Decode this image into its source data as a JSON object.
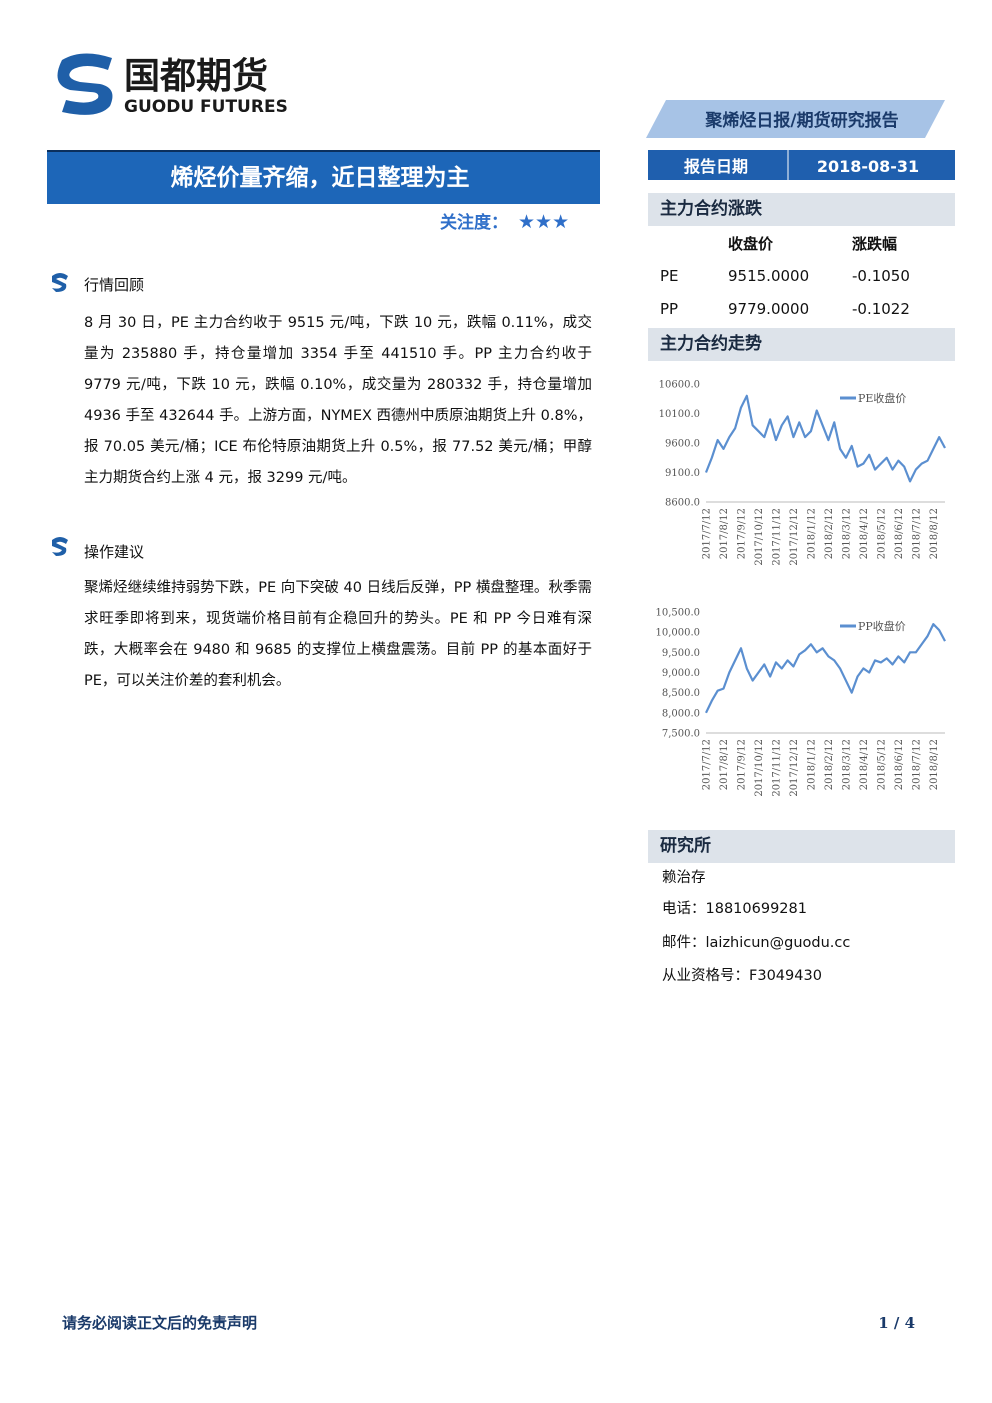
{
  "header": {
    "logo_cn": "国都期货",
    "logo_en": "GUODU FUTURES",
    "report_type": "聚烯烃日报/期货研究报告"
  },
  "title": "烯烃价量齐缩，近日整理为主",
  "attention": {
    "label": "关注度：",
    "stars": "★★★"
  },
  "sections": [
    {
      "heading": "行情回顾",
      "paragraphs": [
        "8 月 30 日，PE 主力合约收于 9515 元/吨，下跌 10 元，跌幅 0.11%，成交量为 235880 手，持仓量增加 3354 手至 441510 手。PP 主力合约收于 9779 元/吨，下跌 10 元，跌幅 0.10%，成交量为 280332 手，持仓量增加 4936 手至 432644 手。上游方面，NYMEX 西德州中质原油期货上升 0.8%，报 70.05 美元/桶；ICE 布伦特原油期货上升 0.5%，报 77.52 美元/桶；甲醇主力期货合约上涨 4 元，报 3299 元/吨。"
      ]
    },
    {
      "heading": "操作建议",
      "paragraphs": [
        "聚烯烃继续维持弱势下跌，PE 向下突破 40 日线后反弹，PP 横盘整理。秋季需求旺季即将到来，现货端价格目前有企稳回升的势头。PE 和 PP 今日难有深跌，大概率会在 9480 和 9685 的支撑位上横盘震荡。目前 PP 的基本面好于 PE，可以关注价差的套利机会。"
      ]
    }
  ],
  "sidebar": {
    "date_label": "报告日期",
    "date": "2018-08-31",
    "table": {
      "title": "主力合约涨跌",
      "headers": [
        "收盘价",
        "涨跌幅"
      ],
      "rows": [
        [
          "PE",
          "9515.0000",
          "-0.1050"
        ],
        [
          "PP",
          "9779.0000",
          "-0.1022"
        ]
      ]
    },
    "trend_title": "主力合约走势"
  },
  "research": {
    "title": "研究所",
    "name": "赖治存",
    "phone": "电话：18810699281",
    "email": "邮件：laizhicun@guodu.cc",
    "license": "从业资格号：F3049430"
  },
  "footer": {
    "disclaimer": "请务必阅读正文后的免责声明",
    "page": "1 / 4"
  },
  "chart_data": [
    {
      "type": "line",
      "categories": [
        "2017/7/12",
        null,
        null,
        "2017/8/12",
        null,
        null,
        "2017/9/12",
        null,
        null,
        "2017/10/12",
        null,
        null,
        "2017/11/12",
        null,
        null,
        "2017/12/12",
        null,
        null,
        "2018/1/12",
        null,
        null,
        "2018/2/12",
        null,
        null,
        "2018/3/12",
        null,
        null,
        "2018/4/12",
        null,
        null,
        "2018/5/12",
        null,
        null,
        "2018/6/12",
        null,
        null,
        "2018/7/12",
        null,
        null,
        "2018/8/12",
        null,
        null
      ],
      "series": [
        {
          "name": "PE收盘价",
          "color": "#5b8fd0",
          "values": [
            9100,
            9350,
            9650,
            9500,
            9700,
            9850,
            10200,
            10400,
            9900,
            9800,
            9700,
            10000,
            9650,
            9900,
            10050,
            9700,
            9950,
            9700,
            9800,
            10150,
            9900,
            9650,
            9950,
            9500,
            9350,
            9550,
            9200,
            9250,
            9400,
            9150,
            9250,
            9350,
            9150,
            9300,
            9200,
            8950,
            9150,
            9250,
            9300,
            9500,
            9700,
            9515
          ]
        }
      ],
      "ylim": [
        8600,
        10600
      ],
      "yticks": [
        {
          "value": 8600,
          "label": "8600.0"
        },
        {
          "value": 9100,
          "label": "9100.0"
        },
        {
          "value": 9600,
          "label": "9600.0"
        },
        {
          "value": 10100,
          "label": "10100.0"
        },
        {
          "value": 10600,
          "label": "10600.0"
        }
      ],
      "legend": "upper right"
    },
    {
      "type": "line",
      "categories": [
        "2017/7/12",
        null,
        null,
        "2017/8/12",
        null,
        null,
        "2017/9/12",
        null,
        null,
        "2017/10/12",
        null,
        null,
        "2017/11/12",
        null,
        null,
        "2017/12/12",
        null,
        null,
        "2018/1/12",
        null,
        null,
        "2018/2/12",
        null,
        null,
        "2018/3/12",
        null,
        null,
        "2018/4/12",
        null,
        null,
        "2018/5/12",
        null,
        null,
        "2018/6/12",
        null,
        null,
        "2018/7/12",
        null,
        null,
        "2018/8/12",
        null,
        null
      ],
      "series": [
        {
          "name": "PP收盘价",
          "color": "#5b8fd0",
          "values": [
            8000,
            8300,
            8550,
            8600,
            9000,
            9300,
            9600,
            9100,
            8800,
            9000,
            9200,
            8900,
            9250,
            9100,
            9300,
            9150,
            9450,
            9550,
            9700,
            9500,
            9600,
            9400,
            9300,
            9100,
            8800,
            8500,
            8900,
            9100,
            9000,
            9300,
            9250,
            9350,
            9200,
            9400,
            9250,
            9500,
            9500,
            9700,
            9900,
            10200,
            10050,
            9779
          ]
        }
      ],
      "ylim": [
        7500,
        10500
      ],
      "yticks": [
        {
          "value": 7500,
          "label": "7,500.0"
        },
        {
          "value": 8000,
          "label": "8,000.0"
        },
        {
          "value": 8500,
          "label": "8,500.0"
        },
        {
          "value": 9000,
          "label": "9,000.0"
        },
        {
          "value": 9500,
          "label": "9,500.0"
        },
        {
          "value": 10000,
          "label": "10,000.0"
        },
        {
          "value": 10500,
          "label": "10,500.0"
        }
      ],
      "legend": "upper right"
    }
  ]
}
